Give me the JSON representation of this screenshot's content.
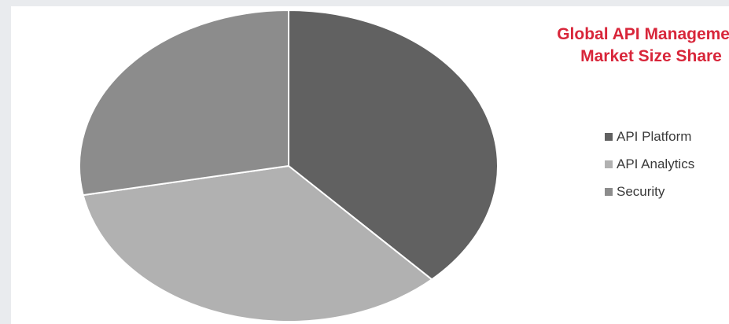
{
  "chart_data": {
    "type": "pie",
    "title": "Global API Management Market Size Share",
    "title_lines": [
      "Global API Management",
      "Market Size Share"
    ],
    "slices": [
      {
        "label": "API Platform",
        "value": 38,
        "color": "#616161"
      },
      {
        "label": "API Analytics",
        "value": 34,
        "color": "#b1b1b1"
      },
      {
        "label": "Security",
        "value": 28,
        "color": "#8c8c8c"
      }
    ],
    "legend_position": "right",
    "start_angle": "top",
    "direction": "clockwise"
  }
}
